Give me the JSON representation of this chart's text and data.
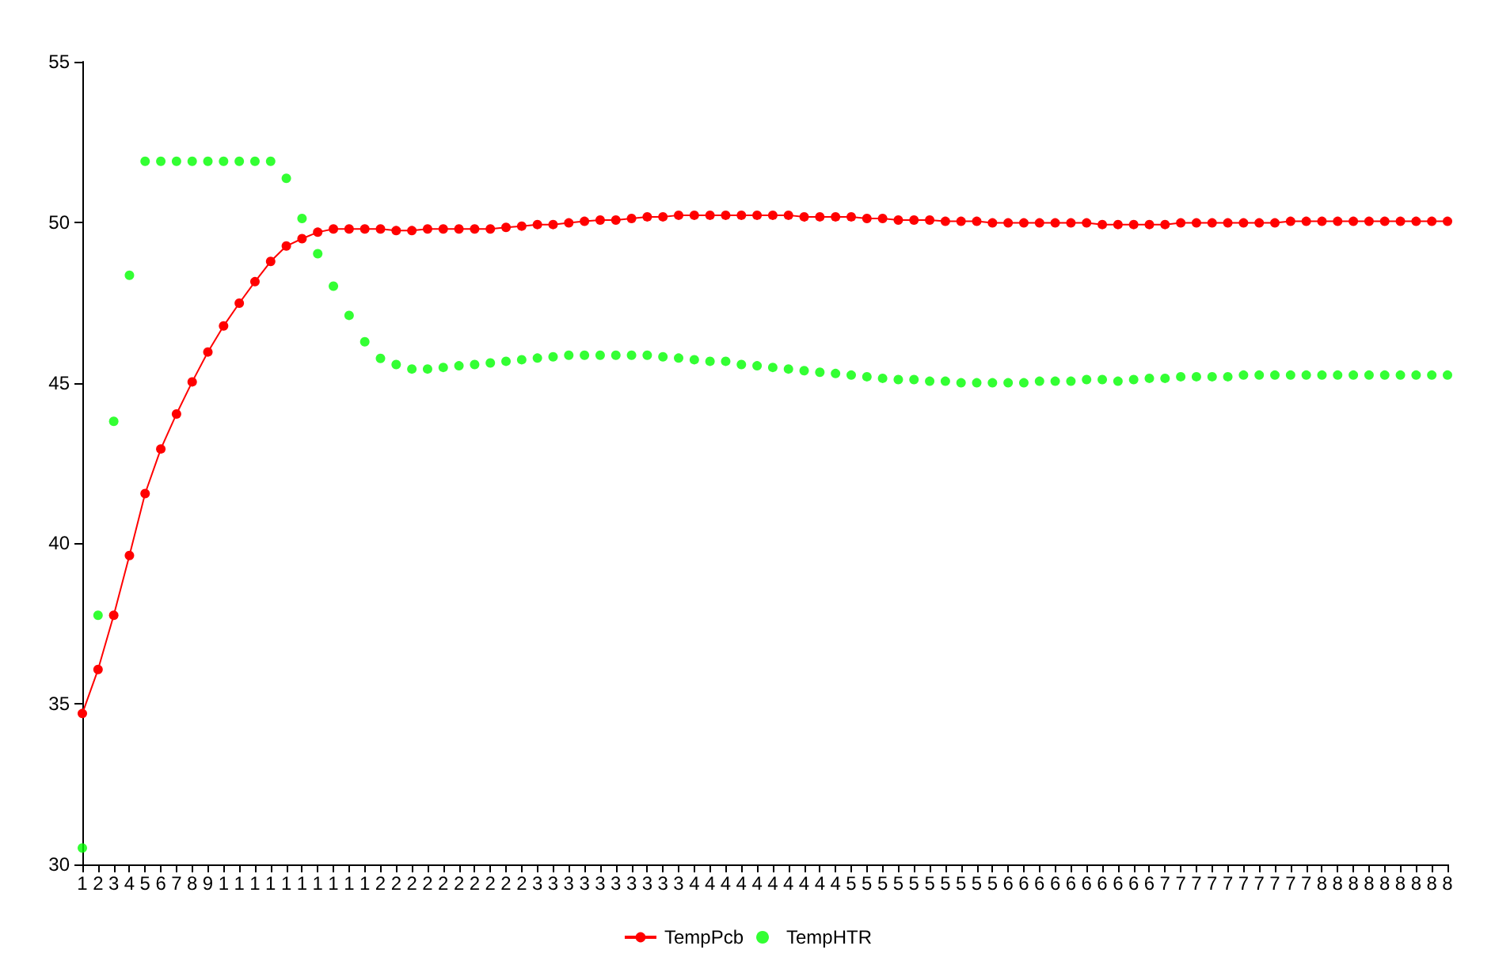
{
  "chart_data": {
    "type": "line",
    "categories": [
      "1",
      "2",
      "3",
      "4",
      "5",
      "6",
      "7",
      "8",
      "9",
      "1",
      "1",
      "1",
      "1",
      "1",
      "1",
      "1",
      "1",
      "1",
      "1",
      "2",
      "2",
      "2",
      "2",
      "2",
      "2",
      "2",
      "2",
      "2",
      "2",
      "3",
      "3",
      "3",
      "3",
      "3",
      "3",
      "3",
      "3",
      "3",
      "3",
      "4",
      "4",
      "4",
      "4",
      "4",
      "4",
      "4",
      "4",
      "4",
      "4",
      "5",
      "5",
      "5",
      "5",
      "5",
      "5",
      "5",
      "5",
      "5",
      "5",
      "6",
      "6",
      "6",
      "6",
      "6",
      "6",
      "6",
      "6",
      "6",
      "6",
      "7",
      "7",
      "7",
      "7",
      "7",
      "7",
      "7",
      "7",
      "7",
      "7",
      "8",
      "8",
      "8",
      "8",
      "8",
      "8",
      "8",
      "8",
      "8"
    ],
    "series": [
      {
        "name": "TempPcb",
        "color": "#ff0000",
        "values": [
          34.7,
          36.07,
          37.76,
          39.62,
          41.55,
          42.94,
          44.03,
          45.03,
          45.96,
          46.77,
          47.48,
          48.15,
          48.78,
          49.26,
          49.49,
          49.69,
          49.79,
          49.79,
          49.79,
          49.79,
          49.74,
          49.74,
          49.79,
          49.79,
          49.79,
          49.79,
          49.79,
          49.84,
          49.88,
          49.93,
          49.93,
          49.98,
          50.03,
          50.07,
          50.07,
          50.12,
          50.17,
          50.17,
          50.22,
          50.22,
          50.22,
          50.22,
          50.22,
          50.22,
          50.22,
          50.22,
          50.17,
          50.17,
          50.17,
          50.17,
          50.12,
          50.12,
          50.07,
          50.07,
          50.07,
          50.03,
          50.03,
          50.03,
          49.98,
          49.98,
          49.98,
          49.98,
          49.98,
          49.98,
          49.98,
          49.93,
          49.93,
          49.93,
          49.93,
          49.93,
          49.98,
          49.98,
          49.98,
          49.98,
          49.98,
          49.98,
          49.98,
          50.03,
          50.03,
          50.03,
          50.03,
          50.03,
          50.03,
          50.03,
          50.03,
          50.03,
          50.03,
          50.03
        ]
      },
      {
        "name": "TempHTR",
        "color": "#00ff00",
        "type": "scatter",
        "values": [
          30.51,
          37.76,
          43.8,
          48.35,
          51.9,
          51.9,
          51.9,
          51.9,
          51.9,
          51.9,
          51.9,
          51.9,
          51.9,
          51.37,
          50.12,
          49.02,
          48.01,
          47.1,
          46.28,
          45.76,
          45.57,
          45.43,
          45.43,
          45.48,
          45.53,
          45.57,
          45.62,
          45.67,
          45.72,
          45.77,
          45.81,
          45.86,
          45.86,
          45.86,
          45.86,
          45.86,
          45.86,
          45.81,
          45.77,
          45.72,
          45.67,
          45.67,
          45.57,
          45.53,
          45.48,
          45.43,
          45.38,
          45.33,
          45.29,
          45.24,
          45.19,
          45.14,
          45.1,
          45.1,
          45.05,
          45.05,
          45.0,
          45.0,
          45.0,
          45.0,
          45.0,
          45.05,
          45.05,
          45.05,
          45.1,
          45.1,
          45.05,
          45.1,
          45.14,
          45.14,
          45.19,
          45.19,
          45.19,
          45.19,
          45.24,
          45.24,
          45.24,
          45.24,
          45.24,
          45.24,
          45.24,
          45.24,
          45.24,
          45.24,
          45.24,
          45.24,
          45.24,
          45.24
        ]
      }
    ],
    "ylim": [
      30,
      55
    ],
    "yticks": [
      30,
      35,
      40,
      45,
      50,
      55
    ],
    "grid": false,
    "legend": "bottom",
    "marker": "circle"
  }
}
